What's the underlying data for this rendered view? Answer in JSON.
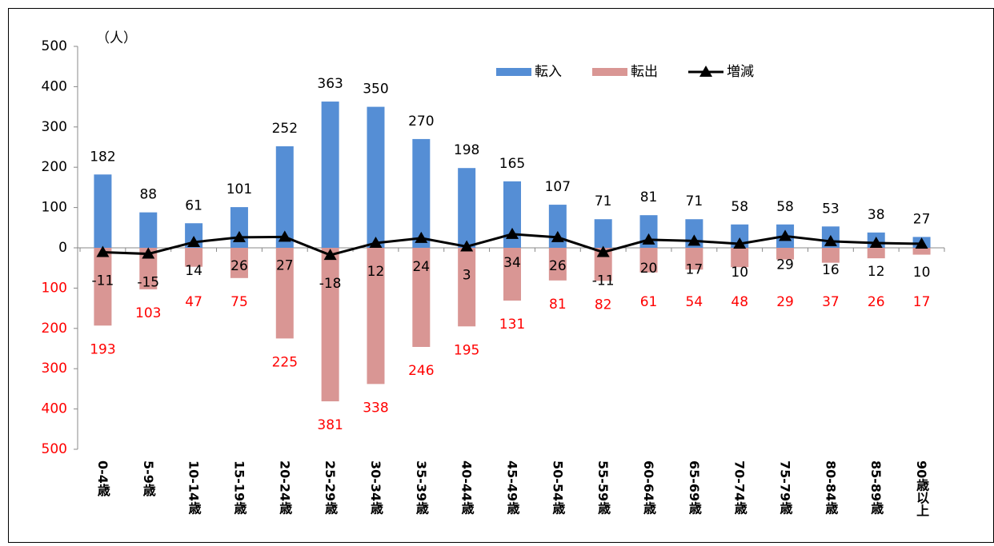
{
  "chart_data": {
    "type": "bar",
    "y_label": "（人）",
    "categories": [
      "0-4歳",
      "5-9歳",
      "10-14歳",
      "15-19歳",
      "20-24歳",
      "25-29歳",
      "30-34歳",
      "35-39歳",
      "40-44歳",
      "45-49歳",
      "50-54歳",
      "55-59歳",
      "60-64歳",
      "65-69歳",
      "70-74歳",
      "75-79歳",
      "80-84歳",
      "85-89歳",
      "90歳以上"
    ],
    "series": [
      {
        "name": "転入",
        "type": "bar",
        "color": "#558ed5",
        "label_color": "#000000",
        "values": [
          182,
          88,
          61,
          101,
          252,
          363,
          350,
          270,
          198,
          165,
          107,
          71,
          81,
          71,
          58,
          58,
          53,
          38,
          27
        ]
      },
      {
        "name": "転出",
        "type": "bar",
        "color": "#d99694",
        "label_color": "#ff0000",
        "values": [
          -193,
          -103,
          -47,
          -75,
          -225,
          -381,
          -338,
          -246,
          -195,
          -131,
          -81,
          -82,
          -61,
          -54,
          -48,
          -29,
          -37,
          -26,
          -17
        ],
        "value_labels": [
          "193",
          "103",
          "47",
          "75",
          "225",
          "381",
          "338",
          "246",
          "195",
          "131",
          "81",
          "82",
          "61",
          "54",
          "48",
          "29",
          "37",
          "26",
          "17"
        ]
      },
      {
        "name": "増減",
        "type": "line",
        "color": "#000000",
        "label_color": "#000000",
        "values": [
          -11,
          -15,
          14,
          26,
          27,
          -18,
          12,
          24,
          3,
          34,
          26,
          -11,
          20,
          17,
          10,
          29,
          16,
          12,
          10
        ]
      }
    ],
    "ylim": [
      -500,
      500
    ],
    "yticks": [
      {
        "value": -500,
        "label": "500"
      },
      {
        "value": -400,
        "label": "400"
      },
      {
        "value": -300,
        "label": "300"
      },
      {
        "value": -200,
        "label": "200"
      },
      {
        "value": -100,
        "label": "100"
      },
      0,
      100,
      200,
      300,
      400,
      500
    ],
    "negative_tick_color": "#ff0000",
    "grid": false,
    "legend": "top-right"
  }
}
